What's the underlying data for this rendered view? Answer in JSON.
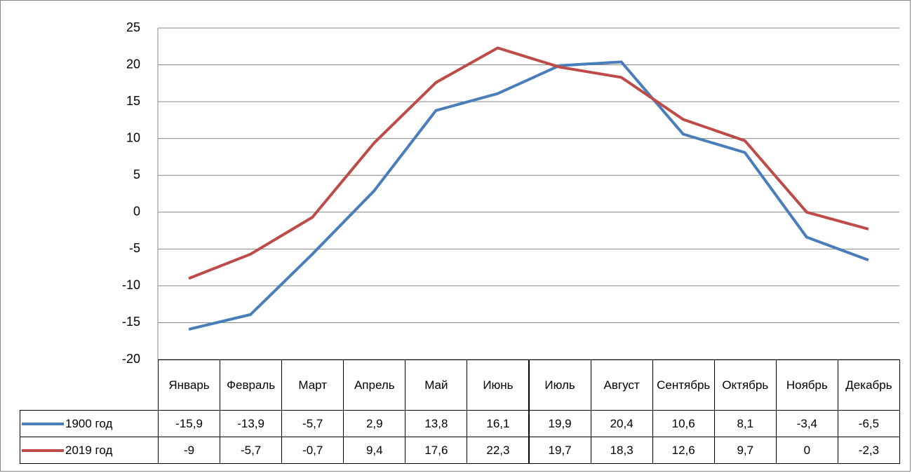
{
  "chart_data": {
    "type": "line",
    "categories": [
      "Январь",
      "Февраль",
      "Март",
      "Апрель",
      "Май",
      "Июнь",
      "Июль",
      "Август",
      "Сентябрь",
      "Октябрь",
      "Ноябрь",
      "Декабрь"
    ],
    "series": [
      {
        "name": "1900 год",
        "color": "#4a7ebb",
        "values": [
          -15.9,
          -13.9,
          -5.7,
          2.9,
          13.8,
          16.1,
          19.9,
          20.4,
          10.6,
          8.1,
          -3.4,
          -6.5
        ],
        "value_labels": [
          "-15,9",
          "-13,9",
          "-5,7",
          "2,9",
          "13,8",
          "16,1",
          "19,9",
          "20,4",
          "10,6",
          "8,1",
          "-3,4",
          "-6,5"
        ]
      },
      {
        "name": "2019 год",
        "color": "#be4b48",
        "values": [
          -9,
          -5.7,
          -0.7,
          9.4,
          17.6,
          22.3,
          19.7,
          18.3,
          12.6,
          9.7,
          0,
          -2.3
        ],
        "value_labels": [
          "-9",
          "-5,7",
          "-0,7",
          "9,4",
          "17,6",
          "22,3",
          "19,7",
          "18,3",
          "12,6",
          "9,7",
          "0",
          "-2,3"
        ]
      }
    ],
    "ylim": [
      -20,
      25
    ],
    "yticks": [
      -20,
      -15,
      -10,
      -5,
      0,
      5,
      10,
      15,
      20,
      25
    ],
    "grid": true
  }
}
